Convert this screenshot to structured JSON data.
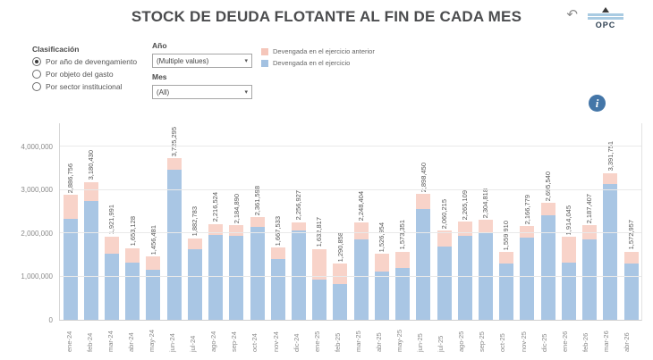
{
  "header": {
    "title": "STOCK DE DEUDA FLOTANTE AL FIN DE CADA MES",
    "logo_text": "OPC"
  },
  "icons": {
    "back_glyph": "↶",
    "dropdown_arrow": "▾",
    "info_glyph": "i"
  },
  "filters": {
    "clasificacion": {
      "label": "Clasificación",
      "options": [
        {
          "label": "Por año de devengamiento",
          "selected": true
        },
        {
          "label": "Por objeto del gasto",
          "selected": false
        },
        {
          "label": "Por sector institucional",
          "selected": false
        }
      ]
    },
    "ano": {
      "label": "Año",
      "value": "(Multiple values)"
    },
    "mes": {
      "label": "Mes",
      "value": "(All)"
    }
  },
  "legend": {
    "items": [
      {
        "label": "Devengada en el ejercicio anterior",
        "color": "#f5c6ba"
      },
      {
        "label": "Devengada en el ejercicio",
        "color": "#a3c1e1"
      }
    ]
  },
  "chart_data": {
    "type": "bar",
    "stacked": true,
    "title": "STOCK DE DEUDA FLOTANTE AL FIN DE CADA MES",
    "categories": [
      "ene-24",
      "feb-24",
      "mar-24",
      "abr-24",
      "may-24",
      "jun-24",
      "jul-24",
      "ago-24",
      "sep-24",
      "oct-24",
      "nov-24",
      "dic-24",
      "ene-25",
      "feb-25",
      "mar-25",
      "abr-25",
      "may-25",
      "jun-25",
      "jul-25",
      "ago-25",
      "sep-25",
      "oct-25",
      "nov-25",
      "dic-25",
      "ene-26",
      "feb-26",
      "mar-26",
      "abr-26"
    ],
    "totals": [
      2886756,
      3180430,
      1921991,
      1653128,
      1456481,
      3725295,
      1882783,
      2216524,
      2184890,
      2361598,
      1667533,
      2256927,
      1632817,
      1290858,
      2248404,
      1526954,
      1573351,
      2898450,
      2060215,
      2265109,
      2304818,
      1559910,
      2166779,
      2695540,
      1914045,
      2187407,
      3391751,
      1572957
    ],
    "total_labels": [
      "2,886,756",
      "3,180,430",
      "1,921,991",
      "1,653,128",
      "1,456,481",
      "3,725,295",
      "1,882,783",
      "2,216,524",
      "2,184,890",
      "2,361,598",
      "1,667,533",
      "2,256,927",
      "1,632,817",
      "1,290,858",
      "2,248,404",
      "1,526,954",
      "1,573,351",
      "2,898,450",
      "2,060,215",
      "2,265,109",
      "2,304,818",
      "1,559,910",
      "2,166,779",
      "2,695,540",
      "1,914,045",
      "2,187,407",
      "3,391,751",
      "1,572,957"
    ],
    "series": [
      {
        "name": "Devengada en el ejercicio",
        "color": "#a9c6e4",
        "values": [
          2340000,
          2745000,
          1527000,
          1327000,
          1157000,
          3456000,
          1622000,
          1958000,
          1943000,
          2140000,
          1408000,
          2065000,
          930000,
          821000,
          1847000,
          1124000,
          1195000,
          2548000,
          1699000,
          1944000,
          2013000,
          1294000,
          1895000,
          2421000,
          1310000,
          1857000,
          3135000,
          1298000
        ]
      },
      {
        "name": "Devengada en el ejercicio anterior",
        "color": "#f8d3c9",
        "values": [
          546756,
          435430,
          394991,
          326128,
          299481,
          269295,
          260783,
          258524,
          241890,
          221598,
          259533,
          191927,
          702817,
          469858,
          401404,
          402954,
          378351,
          350450,
          361215,
          321109,
          291818,
          265910,
          271779,
          274540,
          604045,
          330407,
          256751,
          274957
        ]
      }
    ],
    "xlabel": "",
    "ylabel": "",
    "ylim": [
      0,
      4000000
    ],
    "yticks": [
      "0",
      "1,000,000",
      "2,000,000",
      "3,000,000",
      "4,000,000"
    ],
    "grid": true,
    "legend_position": "top"
  }
}
